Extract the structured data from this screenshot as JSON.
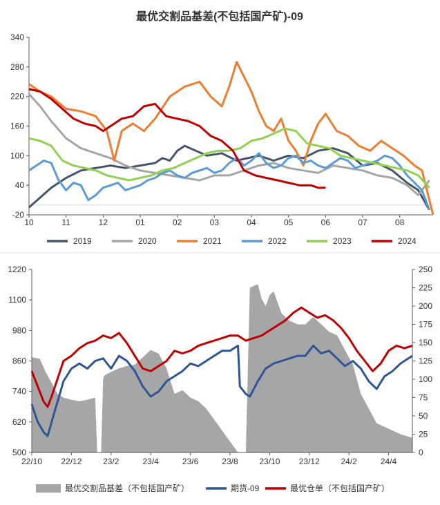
{
  "chart_data": [
    {
      "type": "line",
      "title": "最优交割品基差(不包括国产矿)-09",
      "x_ticks": [
        "10",
        "11",
        "12",
        "01",
        "02",
        "03",
        "04",
        "05",
        "06",
        "07",
        "08"
      ],
      "y_ticks": [
        "340",
        "280",
        "220",
        "160",
        "100",
        "40",
        "-20"
      ],
      "ylim": [
        -20,
        340
      ],
      "xlim": [
        0,
        10.9
      ],
      "series": [
        {
          "name": "2019",
          "color": "#44546a",
          "x": [
            0,
            0.3,
            0.6,
            1.0,
            1.4,
            1.8,
            2.2,
            2.6,
            3.0,
            3.4,
            3.6,
            3.8,
            4.0,
            4.2,
            4.5,
            4.8,
            5.2,
            5.6,
            5.9,
            6.2,
            6.6,
            7.0,
            7.4,
            7.8,
            8.2,
            8.6,
            9.0,
            9.4,
            9.8,
            10.2,
            10.5,
            10.8
          ],
          "y": [
            -5,
            15,
            35,
            55,
            70,
            75,
            80,
            75,
            80,
            85,
            95,
            90,
            110,
            120,
            110,
            100,
            105,
            90,
            95,
            100,
            90,
            100,
            95,
            110,
            115,
            105,
            80,
            85,
            70,
            45,
            30,
            -10
          ]
        },
        {
          "name": "2020",
          "color": "#a5a5a5",
          "x": [
            0,
            0.3,
            0.6,
            1.0,
            1.4,
            1.8,
            2.2,
            2.6,
            3.0,
            3.4,
            3.8,
            4.2,
            4.6,
            5.0,
            5.4,
            5.8,
            6.2,
            6.6,
            7.0,
            7.4,
            7.8,
            8.2,
            8.6,
            9.0,
            9.4,
            9.8,
            10.2,
            10.5,
            10.8
          ],
          "y": [
            225,
            200,
            170,
            135,
            115,
            105,
            95,
            80,
            70,
            65,
            60,
            55,
            50,
            60,
            60,
            70,
            80,
            85,
            75,
            70,
            65,
            80,
            75,
            70,
            60,
            55,
            40,
            20,
            50
          ]
        },
        {
          "name": "2021",
          "color": "#ed7d31",
          "x": [
            0,
            0.3,
            0.6,
            1.0,
            1.4,
            1.8,
            2.1,
            2.3,
            2.5,
            2.8,
            3.1,
            3.4,
            3.8,
            4.2,
            4.6,
            4.9,
            5.2,
            5.4,
            5.6,
            5.8,
            6.0,
            6.2,
            6.4,
            6.6,
            6.8,
            7.0,
            7.2,
            7.4,
            7.6,
            7.8,
            8.0,
            8.3,
            8.6,
            8.9,
            9.2,
            9.5,
            9.8,
            10.1,
            10.4,
            10.6,
            10.9
          ],
          "y": [
            245,
            230,
            220,
            195,
            190,
            180,
            150,
            90,
            150,
            165,
            150,
            175,
            220,
            240,
            250,
            220,
            200,
            240,
            290,
            260,
            230,
            190,
            160,
            150,
            175,
            130,
            110,
            80,
            130,
            165,
            185,
            150,
            140,
            120,
            110,
            130,
            115,
            100,
            80,
            70,
            -20
          ]
        },
        {
          "name": "2022",
          "color": "#5b9bd5",
          "x": [
            0,
            0.2,
            0.4,
            0.6,
            0.8,
            1.0,
            1.2,
            1.4,
            1.6,
            1.8,
            2.0,
            2.2,
            2.4,
            2.6,
            2.8,
            3.0,
            3.2,
            3.4,
            3.6,
            3.8,
            4.0,
            4.2,
            4.4,
            4.6,
            4.8,
            5.0,
            5.2,
            5.4,
            5.6,
            5.8,
            6.0,
            6.2,
            6.4,
            6.6,
            6.8,
            7.0,
            7.2,
            7.4,
            7.6,
            7.8,
            8.0,
            8.2,
            8.4,
            8.6,
            8.8,
            9.0,
            9.2,
            9.4,
            9.6,
            9.8,
            10.0,
            10.2,
            10.4,
            10.6,
            10.8
          ],
          "y": [
            70,
            80,
            90,
            85,
            50,
            30,
            45,
            40,
            10,
            20,
            35,
            40,
            45,
            30,
            35,
            40,
            50,
            55,
            65,
            70,
            60,
            55,
            65,
            70,
            75,
            65,
            70,
            85,
            95,
            80,
            90,
            105,
            85,
            75,
            80,
            95,
            100,
            85,
            90,
            80,
            75,
            85,
            95,
            90,
            75,
            80,
            85,
            90,
            100,
            95,
            80,
            60,
            45,
            30,
            -10
          ]
        },
        {
          "name": "2023",
          "color": "#92d050",
          "x": [
            0,
            0.3,
            0.6,
            0.9,
            1.2,
            1.5,
            1.8,
            2.1,
            2.4,
            2.7,
            3.0,
            3.3,
            3.6,
            3.9,
            4.2,
            4.5,
            4.8,
            5.1,
            5.4,
            5.7,
            6.0,
            6.3,
            6.6,
            6.9,
            7.2,
            7.5,
            7.8,
            8.1,
            8.4,
            8.7,
            9.0,
            9.3,
            9.6,
            9.9,
            10.2,
            10.5,
            10.8
          ],
          "y": [
            135,
            130,
            120,
            90,
            80,
            75,
            70,
            60,
            55,
            50,
            55,
            60,
            70,
            75,
            85,
            95,
            105,
            110,
            110,
            115,
            130,
            135,
            145,
            155,
            150,
            125,
            120,
            115,
            100,
            95,
            90,
            85,
            80,
            75,
            70,
            60,
            35
          ]
        },
        {
          "name": "2024",
          "color": "#c00000",
          "x": [
            0,
            0.3,
            0.6,
            0.9,
            1.2,
            1.5,
            1.8,
            2.0,
            2.2,
            2.5,
            2.8,
            3.1,
            3.4,
            3.7,
            4.0,
            4.3,
            4.6,
            4.9,
            5.2,
            5.5,
            5.8,
            6.1,
            6.4,
            6.7,
            7.0,
            7.3,
            7.6,
            7.8,
            8.0
          ],
          "y": [
            235,
            230,
            215,
            195,
            175,
            165,
            160,
            150,
            160,
            175,
            180,
            200,
            205,
            180,
            175,
            170,
            160,
            140,
            130,
            110,
            70,
            60,
            55,
            50,
            45,
            40,
            40,
            35,
            35
          ]
        }
      ]
    },
    {
      "type": "line",
      "x_ticks": [
        "22/10",
        "22/12",
        "23/2",
        "23/4",
        "23/6",
        "23/8",
        "23/10",
        "23/12",
        "24/2",
        "24/4"
      ],
      "y_left_ticks": [
        "1220",
        "1100",
        "980",
        "860",
        "740",
        "620",
        "500"
      ],
      "y_right_ticks": [
        "250",
        "225",
        "200",
        "175",
        "150",
        "125",
        "100",
        "75",
        "50",
        "25",
        "0"
      ],
      "ylim_left": [
        500,
        1220
      ],
      "ylim_right": [
        0,
        250
      ],
      "xlim": [
        0,
        19.2
      ],
      "series": [
        {
          "name": "最优交割品基差（不包括国产矿）",
          "kind": "area",
          "axis": "right",
          "color": "#a6a6a6",
          "x": [
            0,
            0.4,
            0.7,
            1.0,
            1.3,
            1.6,
            2.0,
            2.4,
            2.8,
            3.2,
            3.3,
            3.5,
            3.6,
            3.65,
            4.0,
            4.4,
            4.8,
            5.2,
            5.6,
            6.0,
            6.4,
            6.8,
            7.2,
            7.6,
            8.0,
            8.4,
            8.8,
            9.2,
            9.6,
            10.0,
            10.4,
            10.8,
            11.0,
            11.4,
            11.6,
            11.8,
            12.0,
            12.2,
            12.6,
            13.0,
            13.4,
            13.8,
            14.2,
            14.6,
            15.0,
            15.4,
            15.8,
            16.2,
            16.6,
            17.0,
            17.4,
            17.8,
            18.2,
            18.6,
            19.2
          ],
          "y": [
            130,
            128,
            110,
            95,
            80,
            75,
            72,
            70,
            72,
            75,
            0,
            0,
            100,
            105,
            110,
            115,
            118,
            120,
            130,
            140,
            135,
            115,
            80,
            85,
            75,
            70,
            60,
            45,
            30,
            15,
            0,
            0,
            225,
            230,
            210,
            200,
            215,
            220,
            190,
            180,
            175,
            175,
            185,
            175,
            165,
            160,
            140,
            120,
            80,
            60,
            40,
            35,
            30,
            25,
            20
          ]
        },
        {
          "name": "期货-09",
          "kind": "line",
          "axis": "left",
          "color": "#2f5597",
          "x": [
            0,
            0.3,
            0.6,
            0.8,
            1.0,
            1.3,
            1.6,
            2.0,
            2.4,
            2.8,
            3.2,
            3.6,
            4.0,
            4.4,
            4.8,
            5.2,
            5.6,
            6.0,
            6.4,
            6.8,
            7.2,
            7.6,
            8.0,
            8.4,
            8.8,
            9.2,
            9.6,
            10.0,
            10.4,
            10.5,
            10.8,
            11.0,
            11.4,
            11.8,
            12.2,
            12.6,
            13.0,
            13.4,
            13.8,
            14.2,
            14.6,
            15.0,
            15.4,
            15.8,
            16.2,
            16.6,
            17.0,
            17.4,
            17.8,
            18.2,
            18.6,
            19.0,
            19.2
          ],
          "y": [
            690,
            620,
            580,
            565,
            620,
            700,
            780,
            830,
            850,
            830,
            860,
            870,
            830,
            880,
            860,
            820,
            760,
            720,
            740,
            780,
            800,
            820,
            850,
            840,
            860,
            880,
            900,
            900,
            920,
            760,
            730,
            720,
            780,
            830,
            850,
            860,
            870,
            880,
            880,
            920,
            890,
            900,
            870,
            840,
            860,
            830,
            780,
            750,
            800,
            820,
            850,
            870,
            880
          ]
        },
        {
          "name": "最优仓单（不包括国产矿）",
          "kind": "line",
          "axis": "left",
          "color": "#c00000",
          "x": [
            0,
            0.3,
            0.6,
            0.8,
            1.0,
            1.3,
            1.6,
            2.0,
            2.4,
            2.8,
            3.2,
            3.6,
            4.0,
            4.4,
            4.8,
            5.2,
            5.6,
            6.0,
            6.4,
            6.8,
            7.2,
            7.6,
            8.0,
            8.4,
            8.8,
            9.2,
            9.6,
            10.0,
            10.4,
            10.8,
            11.2,
            11.6,
            12.0,
            12.4,
            12.8,
            13.2,
            13.6,
            14.0,
            14.4,
            14.8,
            15.2,
            15.6,
            16.0,
            16.4,
            16.8,
            17.2,
            17.6,
            18.0,
            18.4,
            18.8,
            19.2
          ],
          "y": [
            820,
            760,
            700,
            680,
            720,
            790,
            860,
            880,
            910,
            930,
            940,
            960,
            950,
            970,
            930,
            880,
            830,
            820,
            840,
            860,
            900,
            890,
            900,
            920,
            930,
            940,
            950,
            960,
            960,
            940,
            950,
            960,
            980,
            1000,
            1020,
            1050,
            1070,
            1050,
            1030,
            1040,
            1020,
            990,
            950,
            900,
            860,
            820,
            850,
            900,
            920,
            910,
            920
          ]
        }
      ]
    }
  ]
}
